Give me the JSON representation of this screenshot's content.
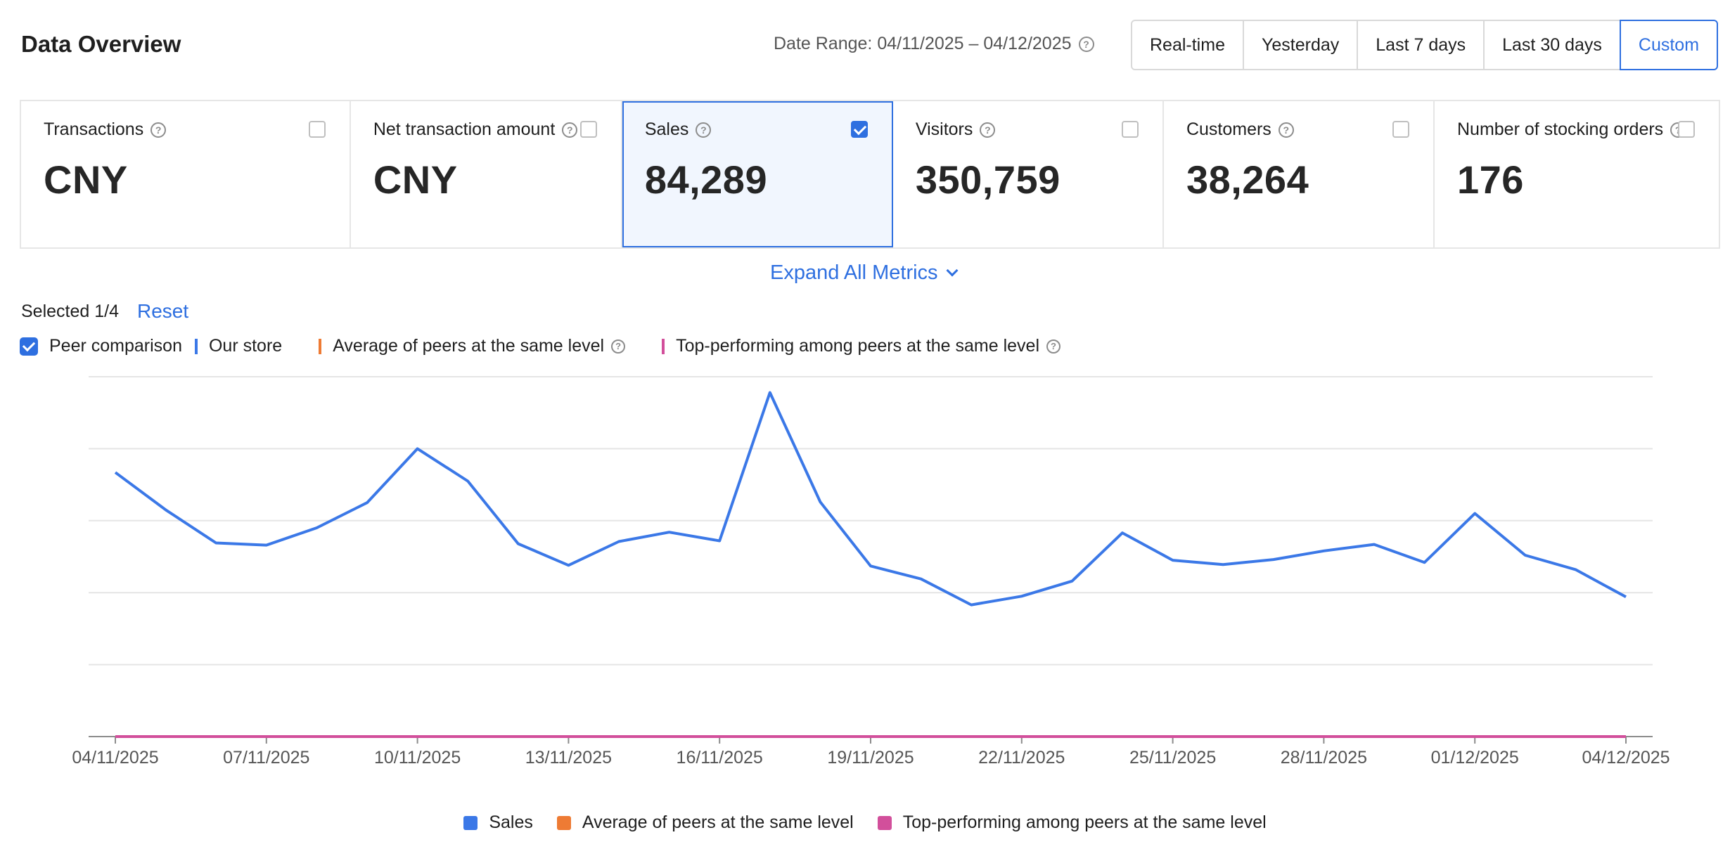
{
  "header": {
    "title": "Data Overview",
    "date_range": "Date Range: 04/11/2025 – 04/12/2025",
    "tabs": [
      {
        "label": "Real-time",
        "active": false
      },
      {
        "label": "Yesterday",
        "active": false
      },
      {
        "label": "Last 7 days",
        "active": false
      },
      {
        "label": "Last 30 days",
        "active": false
      },
      {
        "label": "Custom",
        "active": true
      }
    ]
  },
  "metrics": [
    {
      "label": "Transactions",
      "value": "CNY",
      "checked": false,
      "selected": false,
      "width": 470
    },
    {
      "label": "Net transaction amount",
      "value": "CNY",
      "checked": false,
      "selected": false,
      "width": 386
    },
    {
      "label": "Sales",
      "value": "84,289",
      "checked": true,
      "selected": true,
      "width": 386
    },
    {
      "label": "Visitors",
      "value": "350,759",
      "checked": false,
      "selected": false,
      "width": 386
    },
    {
      "label": "Customers",
      "value": "38,264",
      "checked": false,
      "selected": false,
      "width": 386
    },
    {
      "label": "Number of stocking orders",
      "value": "176",
      "checked": false,
      "selected": false,
      "width": 404
    }
  ],
  "expand_label": "Expand All Metrics",
  "selection": {
    "selected_text": "Selected 1/4",
    "reset_label": "Reset"
  },
  "legend": {
    "peer_comparison": "Peer comparison",
    "our_store": "Our store",
    "average_peers": "Average of peers at the same level",
    "top_peers": "Top-performing among peers at the same level"
  },
  "colors": {
    "accent": "#2e6fe0",
    "sales": "#3b78e7",
    "average": "#ee7b34",
    "top": "#d24f9b",
    "grid": "#e5e5e5"
  },
  "chart_data": {
    "type": "line",
    "x": [
      "04/11/2025",
      "05/11/2025",
      "06/11/2025",
      "07/11/2025",
      "08/11/2025",
      "09/11/2025",
      "10/11/2025",
      "11/11/2025",
      "12/11/2025",
      "13/11/2025",
      "14/11/2025",
      "15/11/2025",
      "16/11/2025",
      "17/11/2025",
      "18/11/2025",
      "19/11/2025",
      "20/11/2025",
      "21/11/2025",
      "22/11/2025",
      "23/11/2025",
      "24/11/2025",
      "25/11/2025",
      "26/11/2025",
      "27/11/2025",
      "28/11/2025",
      "29/11/2025",
      "30/11/2025",
      "01/12/2025",
      "02/12/2025",
      "03/12/2025",
      "04/12/2025"
    ],
    "x_tick_labels": [
      "04/11/2025",
      "07/11/2025",
      "10/11/2025",
      "13/11/2025",
      "16/11/2025",
      "19/11/2025",
      "22/11/2025",
      "25/11/2025",
      "28/11/2025",
      "01/12/2025",
      "04/12/2025"
    ],
    "series": [
      {
        "name": "Sales",
        "color": "#3b78e7",
        "values": [
          3670,
          3150,
          2690,
          2660,
          2900,
          3250,
          4000,
          3550,
          2680,
          2380,
          2710,
          2840,
          2720,
          4780,
          3260,
          2370,
          2190,
          1830,
          1950,
          2160,
          2830,
          2450,
          2390,
          2460,
          2580,
          2670,
          2420,
          3100,
          2520,
          2320,
          1940
        ]
      },
      {
        "name": "Average of peers at the same level",
        "color": "#ee7b34",
        "values": [
          0,
          0,
          0,
          0,
          0,
          0,
          0,
          0,
          0,
          0,
          0,
          0,
          0,
          0,
          0,
          0,
          0,
          0,
          0,
          0,
          0,
          0,
          0,
          0,
          0,
          0,
          0,
          0,
          0,
          0,
          0
        ]
      },
      {
        "name": "Top-performing among peers at the same level",
        "color": "#d24f9b",
        "values": [
          0,
          0,
          0,
          0,
          0,
          0,
          0,
          0,
          0,
          0,
          0,
          0,
          0,
          0,
          0,
          0,
          0,
          0,
          0,
          0,
          0,
          0,
          0,
          0,
          0,
          0,
          0,
          0,
          0,
          0,
          0
        ]
      }
    ],
    "ylim": [
      0,
      5000
    ],
    "grid": true,
    "legend_position": "bottom"
  }
}
